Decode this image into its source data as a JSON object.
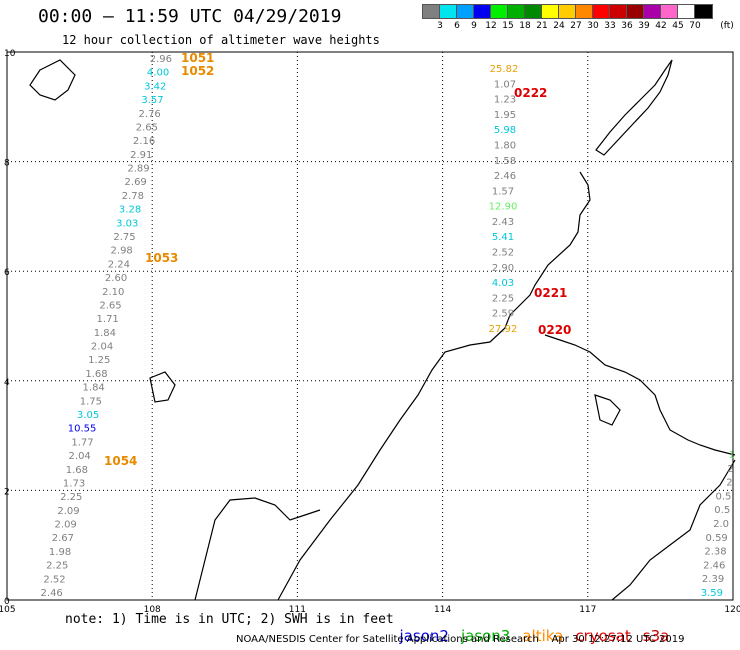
{
  "header": {
    "title": "00:00 — 11:59 UTC 04/29/2019",
    "subtitle": "12 hour collection of altimeter wave heights"
  },
  "legend": {
    "unit": "(ft)",
    "bins": [
      {
        "label": "3",
        "color": "#808080"
      },
      {
        "label": "6",
        "color": "#00e5ee"
      },
      {
        "label": "9",
        "color": "#00a0ff"
      },
      {
        "label": "12",
        "color": "#0000ee"
      },
      {
        "label": "15",
        "color": "#00ee00"
      },
      {
        "label": "18",
        "color": "#00b000"
      },
      {
        "label": "21",
        "color": "#008800"
      },
      {
        "label": "24",
        "color": "#ffff00"
      },
      {
        "label": "27",
        "color": "#ffcc00"
      },
      {
        "label": "30",
        "color": "#ff8800"
      },
      {
        "label": "33",
        "color": "#ff0000"
      },
      {
        "label": "36",
        "color": "#cc0000"
      },
      {
        "label": "39",
        "color": "#990000"
      },
      {
        "label": "42",
        "color": "#aa00aa"
      },
      {
        "label": "45",
        "color": "#ff66cc"
      },
      {
        "label": "70",
        "color": "#ffffff"
      },
      {
        "label": "",
        "color": "#000000"
      }
    ]
  },
  "axes": {
    "lon_ticks": [
      "105",
      "108",
      "111",
      "114",
      "117",
      "120"
    ],
    "lat_ticks": [
      "0",
      "2",
      "4",
      "6",
      "8",
      "10"
    ]
  },
  "tracks": {
    "west": {
      "color_key": "jason3_grey",
      "values": [
        "2.96",
        "4.00",
        "3.42",
        "3.57",
        "2.76",
        "2.65",
        "2.16",
        "2.91",
        "2.89",
        "2.69",
        "2.78",
        "3.28",
        "3.03",
        "2.75",
        "2.98",
        "2.24",
        "2.60",
        "2.10",
        "2.65",
        "1.71",
        "1.84",
        "2.04",
        "1.25",
        "1.68",
        "1.84",
        "1.75",
        "3.05",
        "10.55",
        "1.77",
        "2.04",
        "1.68",
        "1.73",
        "2.25",
        "2.09",
        "2.09",
        "2.67",
        "1.98",
        "2.25",
        "2.52",
        "2.46"
      ],
      "colors": [
        "#808080",
        "#00c8d8",
        "#00c8d8",
        "#00c8d8",
        "#808080",
        "#808080",
        "#808080",
        "#808080",
        "#808080",
        "#808080",
        "#808080",
        "#00c8d8",
        "#00c8d8",
        "#808080",
        "#808080",
        "#808080",
        "#808080",
        "#808080",
        "#808080",
        "#808080",
        "#808080",
        "#808080",
        "#808080",
        "#808080",
        "#808080",
        "#808080",
        "#00c8d8",
        "#0000ee",
        "#808080",
        "#808080",
        "#808080",
        "#808080",
        "#808080",
        "#808080",
        "#808080",
        "#808080",
        "#808080",
        "#808080",
        "#808080",
        "#808080"
      ]
    },
    "east": {
      "values": [
        "25.82",
        "1.07",
        "1.23",
        "1.95",
        "5.98",
        "1.80",
        "1.58",
        "2.46",
        "1.57",
        "12.90",
        "2.43",
        "5.41",
        "2.52",
        "2.90",
        "4.03",
        "2.25",
        "2.59",
        "27.92"
      ],
      "colors": [
        "#e8a000",
        "#808080",
        "#808080",
        "#808080",
        "#00c8d8",
        "#808080",
        "#808080",
        "#808080",
        "#808080",
        "#66ee66",
        "#808080",
        "#00c8d8",
        "#808080",
        "#808080",
        "#00c8d8",
        "#808080",
        "#808080",
        "#e8a000"
      ]
    },
    "edge": {
      "values": [
        "1",
        "2",
        "2",
        "0.5",
        "0.5",
        "2.0",
        "0.59",
        "2.38",
        "2.46",
        "2.39",
        "3.59"
      ],
      "colors": [
        "#66ee66",
        "#808080",
        "#808080",
        "#808080",
        "#808080",
        "#808080",
        "#808080",
        "#808080",
        "#808080",
        "#808080",
        "#00c8d8"
      ]
    }
  },
  "pass_times": [
    {
      "label": "1051",
      "color": "#e88a00"
    },
    {
      "label": "1052",
      "color": "#e88a00"
    },
    {
      "label": "1053",
      "color": "#e88a00"
    },
    {
      "label": "1054",
      "color": "#e88a00"
    },
    {
      "label": "0222",
      "color": "#dd0000"
    },
    {
      "label": "0221",
      "color": "#dd0000"
    },
    {
      "label": "0220",
      "color": "#dd0000"
    }
  ],
  "footer": {
    "note": "note: 1) Time is in UTC; 2) SWH is in feet",
    "satellites": [
      {
        "label": "jason2",
        "color": "#0000dd"
      },
      {
        "label": "jason3",
        "color": "#00aa00"
      },
      {
        "label": "altika",
        "color": "#ff8c00"
      },
      {
        "label": "cryosat",
        "color": "#dd0000"
      },
      {
        "label": "s3a",
        "color": "#cc0000"
      }
    ],
    "credit": "NOAA/NESDIS Center for Satellite Applications and Research    Apr 30 12:27:12 UTC 2019"
  }
}
